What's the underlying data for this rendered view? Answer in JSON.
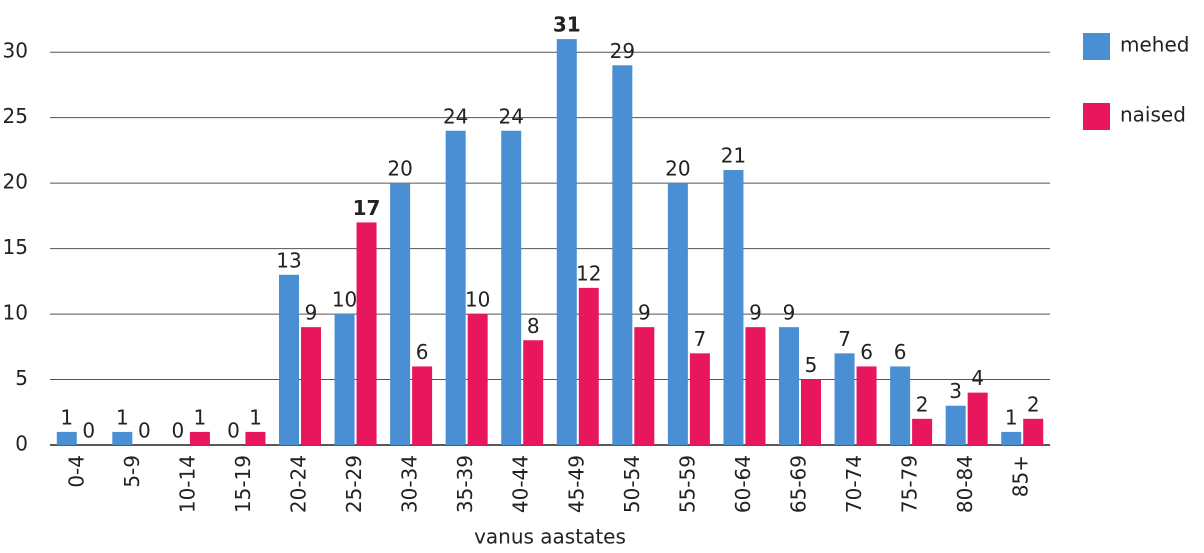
{
  "chart_data": {
    "type": "bar",
    "x_label": "vanus aastates",
    "categories": [
      "0-4",
      "5-9",
      "10-14",
      "15-19",
      "20-24",
      "25-29",
      "30-34",
      "35-39",
      "40-44",
      "45-49",
      "50-54",
      "55-59",
      "60-64",
      "65-69",
      "70-74",
      "75-79",
      "80-84",
      "85+"
    ],
    "series": [
      {
        "name": "mehed",
        "color": "#4a8fd4",
        "values": [
          1,
          1,
          0,
          0,
          13,
          10,
          20,
          24,
          24,
          31,
          29,
          20,
          21,
          9,
          7,
          6,
          3,
          1
        ]
      },
      {
        "name": "naised",
        "color": "#e8175d",
        "values": [
          0,
          0,
          1,
          1,
          9,
          17,
          6,
          10,
          8,
          12,
          9,
          7,
          9,
          5,
          6,
          2,
          4,
          2
        ]
      }
    ],
    "ylim": [
      0,
      32
    ],
    "yticks": [
      0,
      5,
      10,
      15,
      20,
      25,
      30
    ],
    "grid": true,
    "legend": "right"
  }
}
